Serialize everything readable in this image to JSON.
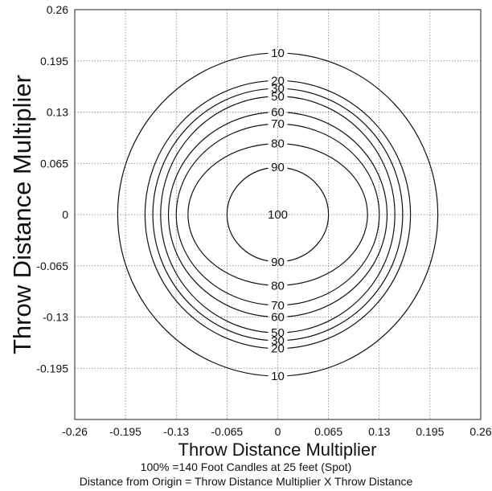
{
  "chart_data": {
    "type": "contour",
    "xlabel": "Throw Distance Multiplier",
    "ylabel": "Throw Distance Multiplier",
    "xlim": [
      -0.26,
      0.26
    ],
    "ylim": [
      -0.26,
      0.26
    ],
    "x_ticks": [
      "-0.26",
      "-0.195",
      "-0.13",
      "-0.065",
      "0",
      "0.065",
      "0.13",
      "0.195",
      "0.26"
    ],
    "y_ticks": [
      "0.26",
      "0.195",
      "0.13",
      "0.065",
      "0",
      "-0.065",
      "-0.13",
      "-0.195"
    ],
    "grid": true,
    "contours": [
      {
        "label": "10",
        "rx": 0.205,
        "ry": 0.205
      },
      {
        "label": "20",
        "rx": 0.17,
        "ry": 0.17
      },
      {
        "label": "30",
        "rx": 0.16,
        "ry": 0.16
      },
      {
        "label": "50",
        "rx": 0.15,
        "ry": 0.15
      },
      {
        "label": "60",
        "rx": 0.14,
        "ry": 0.13
      },
      {
        "label": "70",
        "rx": 0.13,
        "ry": 0.115
      },
      {
        "label": "80",
        "rx": 0.115,
        "ry": 0.09
      },
      {
        "label": "90",
        "rx": 0.065,
        "ry": 0.06
      },
      {
        "label": "100",
        "rx": 0,
        "ry": 0
      }
    ],
    "notes": [
      "100% =140 Foot Candles at 25 feet (Spot)",
      "Distance from Origin = Throw Distance Multiplier X Throw Distance"
    ]
  }
}
